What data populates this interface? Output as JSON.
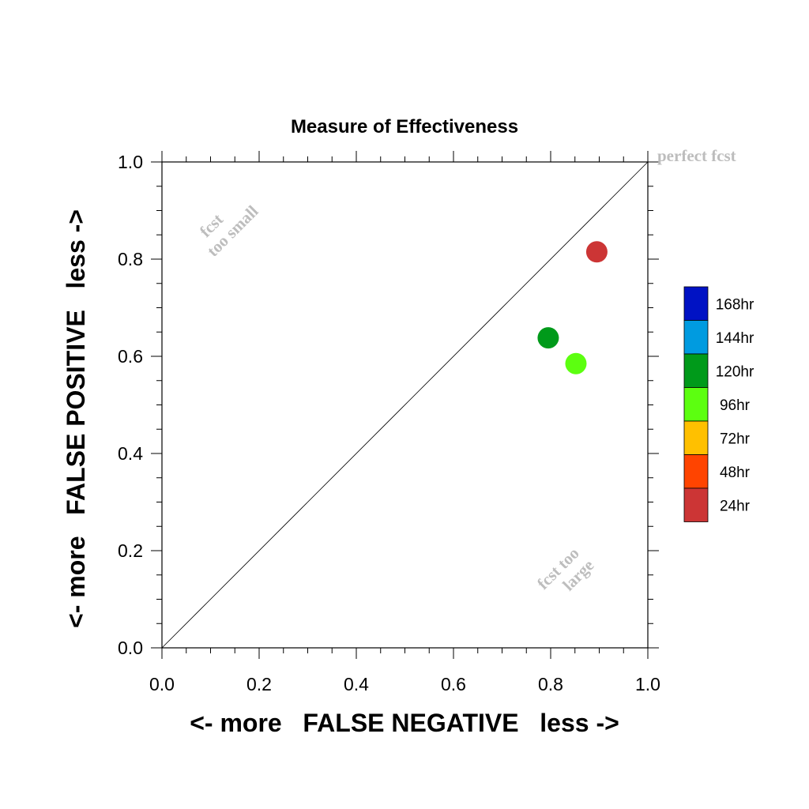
{
  "chart_data": {
    "type": "scatter",
    "title": "Measure of Effectiveness",
    "xlabel": "<- more   FALSE NEGATIVE   less ->",
    "ylabel": "<- more   FALSE POSITIVE   less ->",
    "xlim": [
      0.0,
      1.0
    ],
    "ylim": [
      0.0,
      1.0
    ],
    "x_ticks": [
      "0.0",
      "0.2",
      "0.4",
      "0.6",
      "0.8",
      "1.0"
    ],
    "y_ticks": [
      "0.0",
      "0.2",
      "0.4",
      "0.6",
      "0.8",
      "1.0"
    ],
    "grid": false,
    "diagonal_reference_line": true,
    "annotations": {
      "perfect": "perfect fcst",
      "small_line1": "fcst",
      "small_line2": "too small",
      "large_line1": "fcst too",
      "large_line2": "large"
    },
    "legend_position": "right",
    "legend": [
      {
        "label": "168hr",
        "color": "#0012c4"
      },
      {
        "label": "144hr",
        "color": "#009be0"
      },
      {
        "label": "120hr",
        "color": "#009a1a"
      },
      {
        "label": "96hr",
        "color": "#5cff10"
      },
      {
        "label": "72hr",
        "color": "#ffc000"
      },
      {
        "label": "48hr",
        "color": "#ff4400"
      },
      {
        "label": "24hr",
        "color": "#cc3535"
      }
    ],
    "points": [
      {
        "series": "24hr",
        "x": 0.895,
        "y": 0.815,
        "color": "#cc3535"
      },
      {
        "series": "120hr",
        "x": 0.795,
        "y": 0.638,
        "color": "#009a1a"
      },
      {
        "series": "96hr",
        "x": 0.852,
        "y": 0.585,
        "color": "#5cff10"
      }
    ]
  }
}
